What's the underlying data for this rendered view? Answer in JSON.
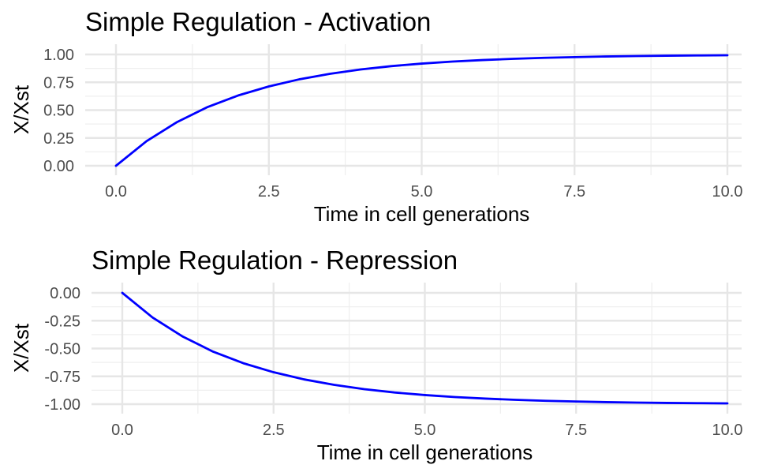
{
  "chart_data": [
    {
      "type": "line",
      "title": "Simple Regulation - Activation",
      "xlabel": "Time in cell generations",
      "ylabel": "X/Xst",
      "xlim": [
        0,
        10
      ],
      "ylim": [
        0,
        1
      ],
      "x_ticks": [
        0,
        2.5,
        5,
        7.5,
        10
      ],
      "x_tick_labels": [
        "0.0",
        "2.5",
        "5.0",
        "7.5",
        "10.0"
      ],
      "y_ticks": [
        0,
        0.25,
        0.5,
        0.75,
        1
      ],
      "y_tick_labels": [
        "0.00",
        "0.25",
        "0.50",
        "0.75",
        "1.00"
      ],
      "grid": true,
      "line_color": "#0000ff",
      "series": [
        {
          "name": "activation",
          "x": [
            0,
            0.5,
            1,
            1.5,
            2,
            2.5,
            3,
            3.5,
            4,
            4.5,
            5,
            5.5,
            6,
            6.5,
            7,
            7.5,
            8,
            8.5,
            9,
            9.5,
            10
          ],
          "values": [
            0,
            0.221,
            0.393,
            0.528,
            0.632,
            0.713,
            0.777,
            0.826,
            0.865,
            0.895,
            0.918,
            0.936,
            0.95,
            0.961,
            0.97,
            0.976,
            0.982,
            0.986,
            0.989,
            0.991,
            0.993
          ]
        }
      ]
    },
    {
      "type": "line",
      "title": "Simple Regulation - Repression",
      "xlabel": "Time in cell generations",
      "ylabel": "X/Xst",
      "xlim": [
        0,
        10
      ],
      "ylim": [
        -1,
        0
      ],
      "x_ticks": [
        0,
        2.5,
        5,
        7.5,
        10
      ],
      "x_tick_labels": [
        "0.0",
        "2.5",
        "5.0",
        "7.5",
        "10.0"
      ],
      "y_ticks": [
        -1,
        -0.75,
        -0.5,
        -0.25,
        0
      ],
      "y_tick_labels": [
        "-1.00",
        "-0.75",
        "-0.50",
        "-0.25",
        "0.00"
      ],
      "grid": true,
      "line_color": "#0000ff",
      "series": [
        {
          "name": "repression",
          "x": [
            0,
            0.5,
            1,
            1.5,
            2,
            2.5,
            3,
            3.5,
            4,
            4.5,
            5,
            5.5,
            6,
            6.5,
            7,
            7.5,
            8,
            8.5,
            9,
            9.5,
            10
          ],
          "values": [
            0,
            -0.221,
            -0.393,
            -0.528,
            -0.632,
            -0.713,
            -0.777,
            -0.826,
            -0.865,
            -0.895,
            -0.918,
            -0.936,
            -0.95,
            -0.961,
            -0.97,
            -0.976,
            -0.982,
            -0.986,
            -0.989,
            -0.991,
            -0.993
          ]
        }
      ]
    }
  ]
}
